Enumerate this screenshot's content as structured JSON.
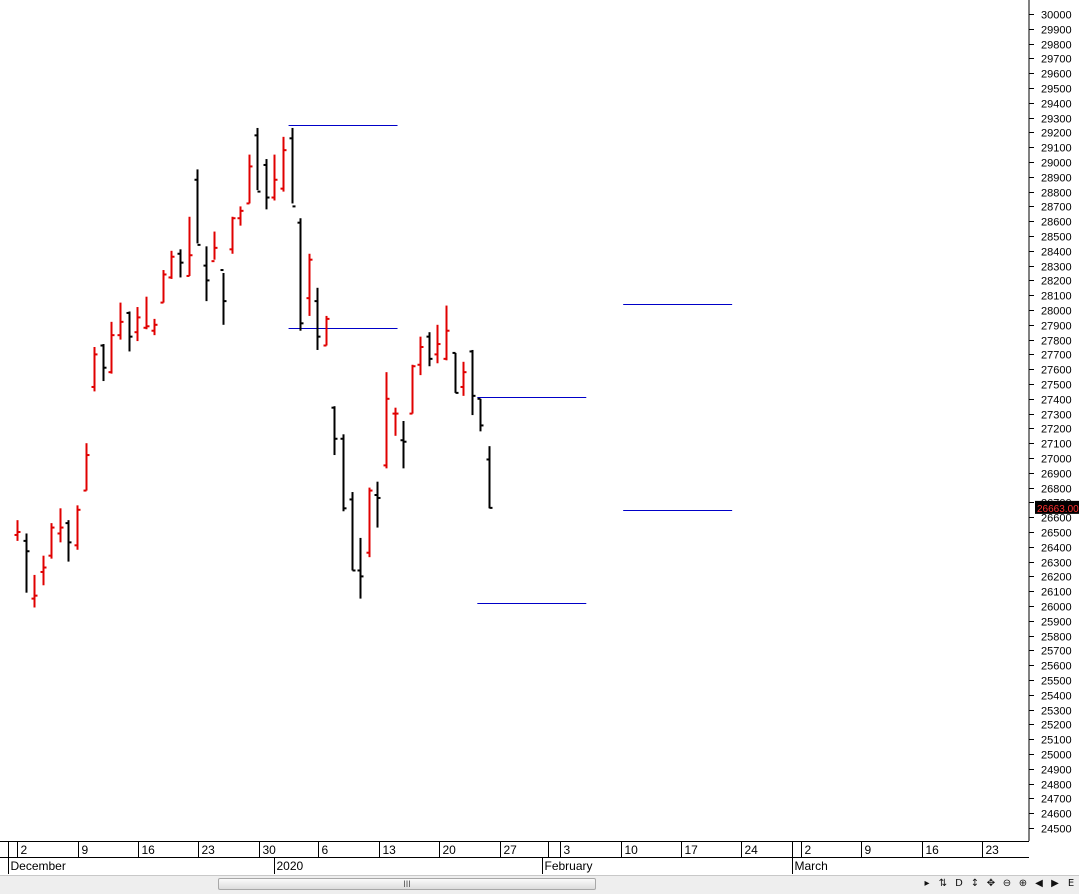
{
  "chart_data": {
    "type": "ohlc",
    "y_axis": {
      "min": 24500,
      "max": 30000,
      "step": 100,
      "position": "right",
      "current_price": 26663,
      "current_price_label": "26663.00"
    },
    "x_axis": {
      "day_labels": [
        "2",
        "9",
        "16",
        "23",
        "30",
        "6",
        "13",
        "20",
        "27",
        "3",
        "10",
        "17",
        "24",
        "2",
        "9",
        "16",
        "23"
      ],
      "month_labels": [
        "December",
        "2020",
        "February",
        "March"
      ]
    },
    "colors": {
      "up": "#e00000",
      "down": "#000000",
      "levels": "#0000c8",
      "price_tag_bg": "#000000",
      "price_tag_text": "#ff3030"
    },
    "bars": [
      {
        "open": 26480,
        "high": 26580,
        "low": 26440,
        "close": 26500
      },
      {
        "open": 26440,
        "high": 26490,
        "low": 26090,
        "close": 26370
      },
      {
        "open": 26050,
        "high": 26210,
        "low": 25990,
        "close": 26070
      },
      {
        "open": 26230,
        "high": 26340,
        "low": 26140,
        "close": 26260
      },
      {
        "open": 26340,
        "high": 26560,
        "low": 26320,
        "close": 26530
      },
      {
        "open": 26490,
        "high": 26660,
        "low": 26430,
        "close": 26530
      },
      {
        "open": 26560,
        "high": 26580,
        "low": 26300,
        "close": 26430
      },
      {
        "open": 26410,
        "high": 26680,
        "low": 26380,
        "close": 26650
      },
      {
        "open": 26780,
        "high": 27100,
        "low": 26780,
        "close": 27020
      },
      {
        "open": 27480,
        "high": 27750,
        "low": 27450,
        "close": 27700
      },
      {
        "open": 27760,
        "high": 27770,
        "low": 27520,
        "close": 27610
      },
      {
        "open": 27580,
        "high": 27920,
        "low": 27570,
        "close": 27830
      },
      {
        "open": 27830,
        "high": 28050,
        "low": 27800,
        "close": 27920
      },
      {
        "open": 27980,
        "high": 27990,
        "low": 27720,
        "close": 27820
      },
      {
        "open": 27850,
        "high": 28020,
        "low": 27790,
        "close": 27950
      },
      {
        "open": 27880,
        "high": 28090,
        "low": 27870,
        "close": 27890
      },
      {
        "open": 27860,
        "high": 27940,
        "low": 27830,
        "close": 27900
      },
      {
        "open": 28050,
        "high": 28270,
        "low": 28050,
        "close": 28240
      },
      {
        "open": 28220,
        "high": 28400,
        "low": 28210,
        "close": 28360
      },
      {
        "open": 28380,
        "high": 28410,
        "low": 28220,
        "close": 28320
      },
      {
        "open": 28230,
        "high": 28630,
        "low": 28230,
        "close": 28370
      },
      {
        "open": 28880,
        "high": 28950,
        "low": 28450,
        "close": 28440
      },
      {
        "open": 28300,
        "high": 28430,
        "low": 28060,
        "close": 28200
      },
      {
        "open": 28330,
        "high": 28530,
        "low": 28340,
        "close": 28420
      },
      {
        "open": 28270,
        "high": 28250,
        "low": 27900,
        "close": 28060
      },
      {
        "open": 28410,
        "high": 28630,
        "low": 28380,
        "close": 28620
      },
      {
        "open": 28620,
        "high": 28700,
        "low": 28570,
        "close": 28670
      },
      {
        "open": 28720,
        "high": 29050,
        "low": 28720,
        "close": 28970
      },
      {
        "open": 29180,
        "high": 29230,
        "low": 28810,
        "close": 28800
      },
      {
        "open": 28980,
        "high": 29020,
        "low": 28680,
        "close": 28760
      },
      {
        "open": 28760,
        "high": 29050,
        "low": 28740,
        "close": 28880
      },
      {
        "open": 28820,
        "high": 29170,
        "low": 28800,
        "close": 29080
      },
      {
        "open": 29160,
        "high": 29230,
        "low": 28720,
        "close": 28700
      },
      {
        "open": 28590,
        "high": 28620,
        "low": 27860,
        "close": 27910
      },
      {
        "open": 28080,
        "high": 28380,
        "low": 27960,
        "close": 28340
      },
      {
        "open": 28060,
        "high": 28150,
        "low": 27730,
        "close": 27820
      },
      {
        "open": 27760,
        "high": 27960,
        "low": 27760,
        "close": 27940
      },
      {
        "open": 27340,
        "high": 27350,
        "low": 27020,
        "close": 27130
      },
      {
        "open": 27130,
        "high": 27160,
        "low": 26640,
        "close": 26660
      },
      {
        "open": 26720,
        "high": 26770,
        "low": 26240,
        "close": 26240
      },
      {
        "open": 26240,
        "high": 26460,
        "low": 26050,
        "close": 26200
      },
      {
        "open": 26360,
        "high": 26800,
        "low": 26330,
        "close": 26780
      },
      {
        "open": 26750,
        "high": 26840,
        "low": 26530,
        "close": 26730
      },
      {
        "open": 26950,
        "high": 27580,
        "low": 26930,
        "close": 27400
      },
      {
        "open": 27300,
        "high": 27340,
        "low": 27150,
        "close": 27300
      },
      {
        "open": 27120,
        "high": 27250,
        "low": 26930,
        "close": 27110
      },
      {
        "open": 27300,
        "high": 27630,
        "low": 27300,
        "close": 27620
      },
      {
        "open": 27630,
        "high": 27820,
        "low": 27560,
        "close": 27750
      },
      {
        "open": 27820,
        "high": 27850,
        "low": 27620,
        "close": 27670
      },
      {
        "open": 27700,
        "high": 27900,
        "low": 27640,
        "close": 27770
      },
      {
        "open": 27670,
        "high": 28030,
        "low": 27660,
        "close": 27860
      },
      {
        "open": 27710,
        "high": 27710,
        "low": 27440,
        "close": 27440
      },
      {
        "open": 27480,
        "high": 27650,
        "low": 27420,
        "close": 27580
      },
      {
        "open": 27720,
        "high": 27730,
        "low": 27290,
        "close": 27420
      },
      {
        "open": 27400,
        "high": 27400,
        "low": 27180,
        "close": 27220
      },
      {
        "open": 26990,
        "high": 27080,
        "low": 26660,
        "close": 26663
      }
    ],
    "levels": [
      {
        "start_bar": 32,
        "end_bar": 44,
        "value": 29250
      },
      {
        "start_bar": 32,
        "end_bar": 44,
        "value": 27880
      },
      {
        "start_bar": 54,
        "end_bar": 66,
        "value": 27410
      },
      {
        "start_bar": 54,
        "end_bar": 66,
        "value": 26020
      },
      {
        "start_bar": 71,
        "end_bar": 83,
        "value": 28040
      },
      {
        "start_bar": 71,
        "end_bar": 83,
        "value": 26650
      }
    ]
  },
  "toolbar": {
    "icons": [
      "play-small-icon",
      "sync-icon",
      "d-icon",
      "vertical-arrows-icon",
      "move-icon",
      "zoom-out-icon",
      "zoom-in-icon",
      "arrow-left-icon",
      "arrow-right-icon",
      "e-icon"
    ],
    "glyphs": [
      "▸",
      "⇅",
      "D",
      "↕",
      "✥",
      "⊖",
      "⊕",
      "◀",
      "▶",
      "E"
    ]
  },
  "scrollbar": {
    "grip": "III"
  }
}
